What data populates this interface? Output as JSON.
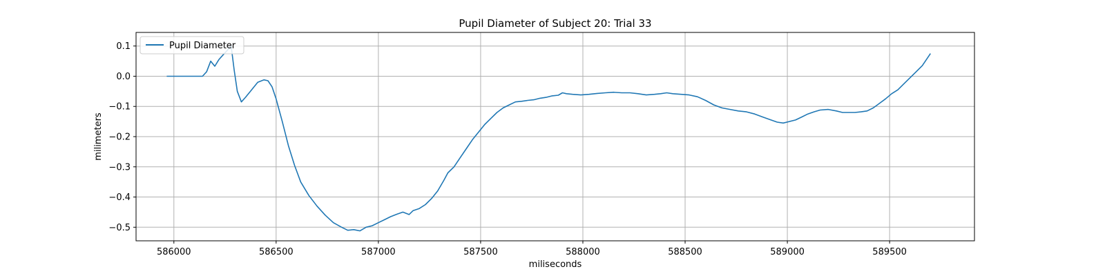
{
  "chart_data": {
    "type": "line",
    "title": "Pupil Diameter of Subject 20: Trial 33",
    "xlabel": "miliseconds",
    "ylabel": "milimeters",
    "xlim": [
      585815,
      589915
    ],
    "ylim": [
      -0.545,
      0.145
    ],
    "xticks": [
      586000,
      586500,
      587000,
      587500,
      588000,
      588500,
      589000,
      589500
    ],
    "yticks": [
      -0.5,
      -0.4,
      -0.3,
      -0.2,
      -0.1,
      0.0,
      0.1
    ],
    "grid": true,
    "legend_position": "top-left",
    "color": "#1f77b4",
    "series": [
      {
        "name": "Pupil Diameter",
        "x": [
          585965,
          586000,
          586050,
          586100,
          586140,
          586160,
          586180,
          586200,
          586220,
          586240,
          586260,
          586280,
          586295,
          586310,
          586330,
          586350,
          586380,
          586410,
          586440,
          586460,
          586480,
          586500,
          586530,
          586560,
          586590,
          586620,
          586660,
          586700,
          586740,
          586780,
          586820,
          586850,
          586880,
          586910,
          586940,
          586970,
          587000,
          587030,
          587060,
          587090,
          587120,
          587150,
          587170,
          587200,
          587230,
          587260,
          587290,
          587320,
          587340,
          587370,
          587400,
          587430,
          587460,
          587490,
          587520,
          587550,
          587580,
          587610,
          587640,
          587670,
          587700,
          587730,
          587760,
          587790,
          587820,
          587850,
          587880,
          587900,
          587920,
          587950,
          587990,
          588030,
          588070,
          588110,
          588150,
          588190,
          588230,
          588270,
          588310,
          588350,
          588380,
          588410,
          588440,
          588480,
          588520,
          588560,
          588600,
          588640,
          588680,
          588720,
          588760,
          588800,
          588840,
          588880,
          588920,
          588950,
          588980,
          589010,
          589040,
          589070,
          589100,
          589130,
          589160,
          589200,
          589240,
          589270,
          589300,
          589330,
          589360,
          589390,
          589420,
          589450,
          589480,
          589510,
          589540,
          589570,
          589600,
          589630,
          589660,
          589700
        ],
        "y": [
          0.0,
          0.0,
          0.0,
          0.0,
          0.0,
          0.015,
          0.05,
          0.033,
          0.055,
          0.07,
          0.085,
          0.1,
          0.02,
          -0.05,
          -0.085,
          -0.07,
          -0.045,
          -0.02,
          -0.012,
          -0.015,
          -0.035,
          -0.075,
          -0.15,
          -0.23,
          -0.295,
          -0.35,
          -0.395,
          -0.43,
          -0.46,
          -0.485,
          -0.5,
          -0.51,
          -0.508,
          -0.512,
          -0.5,
          -0.495,
          -0.485,
          -0.475,
          -0.465,
          -0.457,
          -0.45,
          -0.458,
          -0.445,
          -0.438,
          -0.425,
          -0.405,
          -0.38,
          -0.345,
          -0.32,
          -0.3,
          -0.27,
          -0.24,
          -0.21,
          -0.185,
          -0.16,
          -0.14,
          -0.12,
          -0.105,
          -0.095,
          -0.085,
          -0.083,
          -0.08,
          -0.078,
          -0.073,
          -0.07,
          -0.065,
          -0.063,
          -0.055,
          -0.058,
          -0.06,
          -0.062,
          -0.06,
          -0.057,
          -0.055,
          -0.053,
          -0.055,
          -0.055,
          -0.058,
          -0.062,
          -0.06,
          -0.058,
          -0.055,
          -0.058,
          -0.06,
          -0.062,
          -0.068,
          -0.08,
          -0.095,
          -0.105,
          -0.11,
          -0.115,
          -0.118,
          -0.125,
          -0.135,
          -0.145,
          -0.152,
          -0.155,
          -0.15,
          -0.145,
          -0.135,
          -0.125,
          -0.118,
          -0.112,
          -0.11,
          -0.115,
          -0.12,
          -0.12,
          -0.12,
          -0.118,
          -0.115,
          -0.105,
          -0.09,
          -0.075,
          -0.058,
          -0.045,
          -0.025,
          -0.005,
          0.015,
          0.035,
          0.075
        ]
      }
    ]
  }
}
